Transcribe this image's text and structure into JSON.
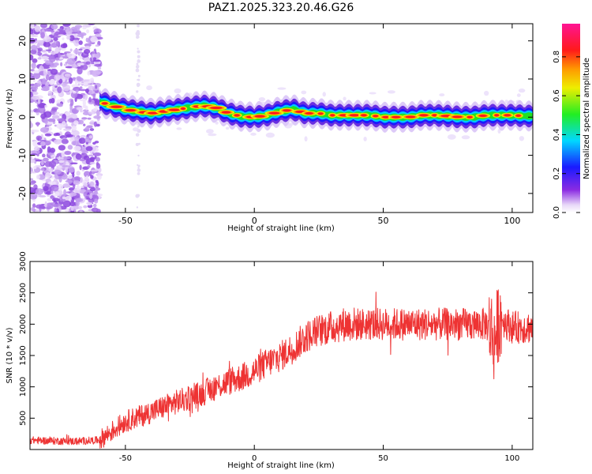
{
  "figure_title": "PAZ1.2025.323.20.46.G26",
  "chart_data": [
    {
      "type": "heatmap",
      "title": "PAZ1.2025.323.20.46.G26",
      "xlabel": "Height of straight line (km)",
      "ylabel": "Frequency (Hz)",
      "xlim": [
        -87,
        108
      ],
      "ylim": [
        -25,
        24.5
      ],
      "xticks": [
        -50,
        0,
        50,
        100
      ],
      "yticks": [
        -20,
        -10,
        0,
        10,
        20
      ],
      "xtick_labels": [
        "-50",
        "0",
        "50",
        "100"
      ],
      "ytick_labels": [
        "-20",
        "-10",
        "0",
        "10",
        "20"
      ],
      "ridge": {
        "x": [
          -60,
          -55,
          -50,
          -45,
          -40,
          -35,
          -30,
          -25,
          -20,
          -15,
          -10,
          -5,
          0,
          5,
          10,
          15,
          20,
          25,
          30,
          35,
          40,
          45,
          50,
          55,
          60,
          65,
          70,
          75,
          80,
          85,
          90,
          95,
          100,
          105,
          108
        ],
        "freq": [
          4,
          3,
          2,
          1.5,
          1,
          1.5,
          2,
          2.5,
          3,
          2.5,
          1,
          0.2,
          0,
          0.5,
          1.5,
          2,
          1,
          1,
          0.5,
          0.5,
          0.5,
          0.5,
          0,
          0,
          0,
          0.5,
          0.5,
          0.3,
          0,
          0,
          0.5,
          0.5,
          0.5,
          0.3,
          0.3
        ]
      },
      "noise_region_x": [
        -87,
        -60
      ],
      "colorbar": {
        "label": "Normalized spectral amplitude",
        "range": [
          0,
          0.97
        ],
        "ticks": [
          0,
          0.2,
          0.4,
          0.6,
          0.8
        ],
        "tick_labels": [
          "0.0",
          "0.2",
          "0.4",
          "0.6",
          "0.8"
        ],
        "colormap": "rainbow: white - violet - blue - cyan - green - yellow - orange - red - magenta"
      }
    },
    {
      "type": "line",
      "xlabel": "Height of straight line (km)",
      "ylabel": "SNR (10 * v/v)",
      "xlim": [
        -87,
        108
      ],
      "ylim": [
        0,
        3000
      ],
      "xticks": [
        -50,
        0,
        50,
        100
      ],
      "yticks": [
        500,
        1000,
        1500,
        2000,
        2500,
        3000
      ],
      "xtick_labels": [
        "-50",
        "0",
        "50",
        "100"
      ],
      "ytick_labels": [
        "500",
        "1000",
        "1500",
        "2000",
        "2500",
        "3000"
      ],
      "color": "#ee3333",
      "series": [
        {
          "name": "SNR",
          "x": [
            -87,
            -80,
            -70,
            -60,
            -55,
            -50,
            -45,
            -40,
            -35,
            -30,
            -25,
            -20,
            -15,
            -10,
            -5,
            0,
            5,
            10,
            15,
            20,
            25,
            30,
            35,
            40,
            45,
            50,
            55,
            60,
            65,
            70,
            75,
            80,
            85,
            90,
            92,
            93,
            95,
            100,
            105,
            108
          ],
          "y": [
            150,
            140,
            130,
            150,
            300,
            450,
            520,
            600,
            680,
            760,
            820,
            900,
            1000,
            1080,
            1150,
            1250,
            1380,
            1480,
            1620,
            1800,
            1900,
            1950,
            2000,
            2000,
            2000,
            2000,
            2000,
            2000,
            2000,
            2000,
            2000,
            2000,
            2000,
            2000,
            1900,
            1700,
            2100,
            1950,
            1950,
            1950
          ]
        }
      ]
    }
  ]
}
